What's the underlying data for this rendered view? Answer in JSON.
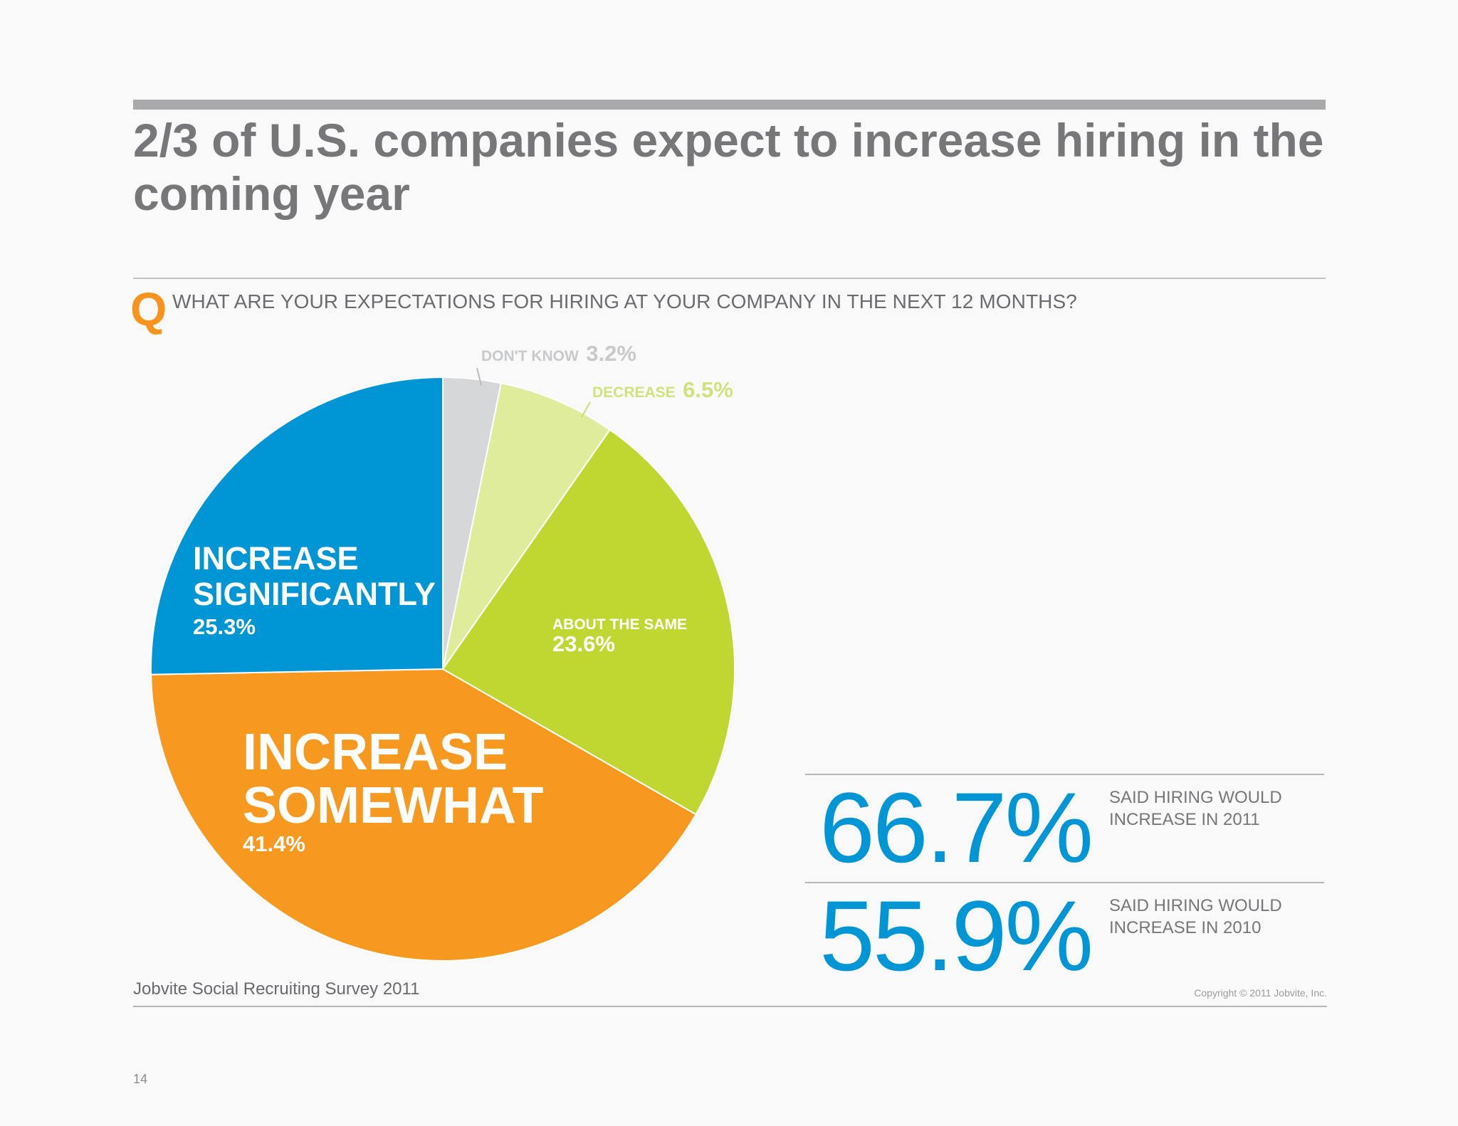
{
  "header": {
    "title": "2/3 of U.S. companies expect to increase hiring in the coming year"
  },
  "question": {
    "mark": "Q",
    "text": "WHAT ARE YOUR EXPECTATIONS FOR HIRING AT YOUR COMPANY IN THE NEXT 12 MONTHS?"
  },
  "chart_data": {
    "type": "pie",
    "start": "12 o'clock",
    "direction": "clockwise",
    "slices": [
      {
        "label": "DON'T KNOW",
        "value": 3.2,
        "value_text": "3.2%",
        "color": "#d6d7d9"
      },
      {
        "label": "DECREASE",
        "value": 6.5,
        "value_text": "6.5%",
        "color": "#deec9b"
      },
      {
        "label": "ABOUT THE SAME",
        "value": 23.6,
        "value_text": "23.6%",
        "color": "#bfd730"
      },
      {
        "label": "INCREASE SOMEWHAT",
        "value": 41.4,
        "value_text": "41.4%",
        "color": "#f7981f"
      },
      {
        "label": "INCREASE SIGNIFICANTLY",
        "value": 25.3,
        "value_text": "25.3%",
        "color": "#0096d6"
      }
    ]
  },
  "pie_labels": {
    "dont_know": {
      "label": "DON'T KNOW",
      "value": "3.2%",
      "color": "#c8c9cb"
    },
    "decrease": {
      "label": "DECREASE",
      "value": "6.5%",
      "color": "#cfe37a"
    },
    "same": {
      "line1": "ABOUT THE SAME",
      "value": "23.6%"
    },
    "somewhat": {
      "line1": "INCREASE",
      "line2": "SOMEWHAT",
      "value": "41.4%"
    },
    "significantly": {
      "line1": "INCREASE",
      "line2": "SIGNIFICANTLY",
      "value": "25.3%"
    }
  },
  "stats": [
    {
      "value": "66.7%",
      "label_line1": "SAID HIRING WOULD",
      "label_line2": "INCREASE IN 2011"
    },
    {
      "value": "55.9%",
      "label_line1": "SAID HIRING WOULD",
      "label_line2": "INCREASE IN 2010"
    }
  ],
  "colors": {
    "accent_blue": "#0096d6",
    "accent_orange": "#f7941d"
  },
  "footer": {
    "source": "Jobvite Social Recruiting Survey 2011",
    "copyright": "Copyright © 2011 Jobvite, Inc.",
    "page_number": "14"
  }
}
